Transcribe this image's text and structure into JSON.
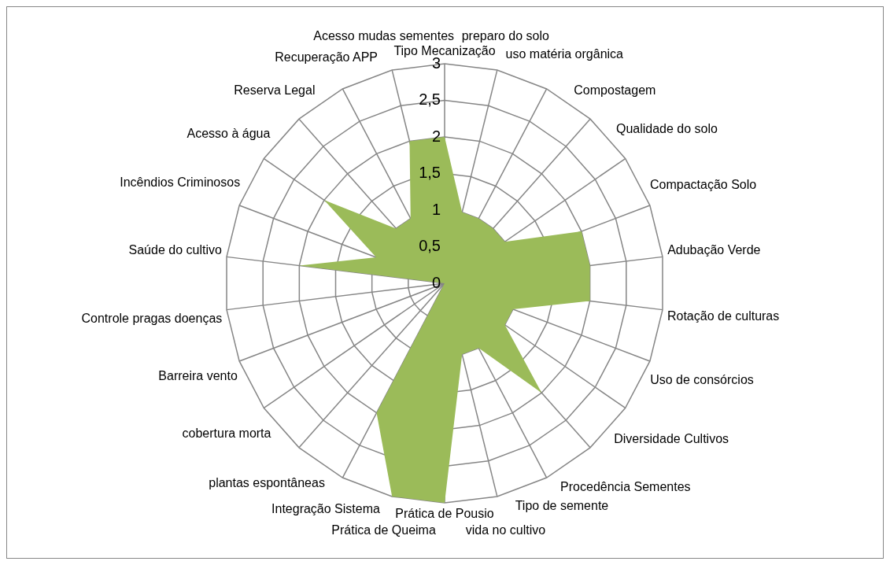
{
  "chart_data": {
    "type": "radar",
    "categories": [
      "Tipo Mecanização",
      "preparo do solo",
      "uso matéria orgânica",
      "Compostagem",
      "Qualidade do solo",
      "Compactação Solo",
      "Adubação Verde",
      "Rotação de culturas",
      "Uso de consórcios",
      "Diversidade Cultivos",
      "Procedência Sementes",
      "Tipo de semente",
      "vida no cultivo",
      "Prática de Pousio",
      "Prática de Queima",
      "Integração Sistema",
      "plantas espontâneas",
      "cobertura morta",
      "Barreira vento",
      "Controle pragas doenças",
      "Saúde do cultivo",
      "Incêndios Criminosos",
      "Acesso à água",
      "Reserva Legal",
      "Recuperação APP",
      "Acesso mudas sementes"
    ],
    "series": [
      {
        "color": "#9bbb59",
        "values": [
          2,
          1,
          1,
          1,
          1,
          2,
          2,
          2,
          1,
          1,
          2,
          1,
          1,
          3,
          3,
          2,
          0,
          0,
          0,
          0,
          2,
          1,
          2,
          1,
          1,
          2
        ]
      }
    ],
    "ylim": [
      0,
      3
    ],
    "yticks": [
      0,
      {
        "value": 0.5,
        "label": "0,5"
      },
      1,
      {
        "value": 1.5,
        "label": "1,5"
      },
      2,
      {
        "value": 2.5,
        "label": "2,5"
      },
      3
    ],
    "grid": true,
    "legend": false,
    "marker": "none"
  }
}
